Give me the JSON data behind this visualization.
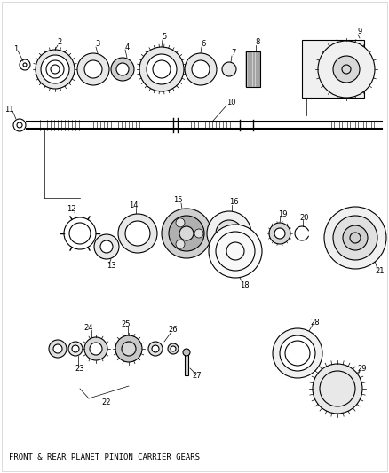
{
  "title": "FRONT & REAR PLANET PINION CARRIER GEARS",
  "bg_color": "#ffffff",
  "line_color": "#000000",
  "figsize": [
    4.38,
    5.33
  ],
  "dpi": 100,
  "caption": "FRONT & REAR PLANET PINION CARRIER GEARS",
  "part_numbers": [
    1,
    2,
    3,
    4,
    5,
    6,
    7,
    8,
    9,
    10,
    11,
    12,
    13,
    14,
    15,
    16,
    18,
    19,
    20,
    21,
    22,
    23,
    24,
    25,
    26,
    27,
    28,
    29
  ]
}
